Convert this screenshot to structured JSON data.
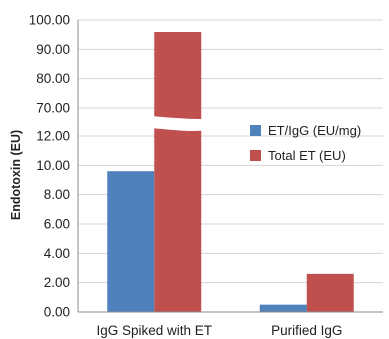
{
  "chart_data": {
    "type": "bar",
    "ylabel": "Endotoxin (EU)",
    "categories": [
      "IgG Spiked with ET",
      "Purified IgG"
    ],
    "series": [
      {
        "name": "ET/IgG (EU/mg)",
        "color": "#4f81bd",
        "values": [
          9.6,
          0.5
        ]
      },
      {
        "name": "Total ET  (EU)",
        "color": "#c0504d",
        "values": [
          95.9,
          2.6
        ]
      }
    ],
    "y_axis": {
      "broken": true,
      "lower_range": [
        0,
        12
      ],
      "upper_range": [
        70,
        100
      ],
      "lower_ticks": [
        "0.00",
        "2.00",
        "4.00",
        "6.00",
        "8.00",
        "10.00",
        "12.00"
      ],
      "upper_ticks": [
        "70.00",
        "80.00",
        "90.00",
        "100.00"
      ]
    },
    "grid": true,
    "legend_position": "right"
  }
}
